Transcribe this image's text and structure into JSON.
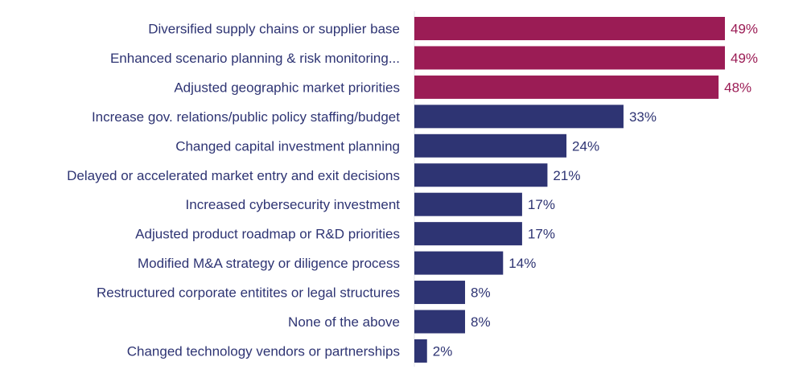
{
  "chart_data": {
    "type": "bar",
    "orientation": "horizontal",
    "categories": [
      "Diversified supply chains or supplier base",
      "Enhanced scenario planning & risk monitoring...",
      "Adjusted geographic market priorities",
      "Increase gov. relations/public policy staffing/budget",
      "Changed capital investment planning",
      "Delayed or accelerated market entry and exit decisions",
      "Increased cybersecurity investment",
      "Adjusted product roadmap or R&D priorities",
      "Modified M&A strategy or diligence process",
      "Restructured corporate entitites or legal structures",
      "None of the above",
      "Changed technology vendors or partnerships"
    ],
    "values": [
      49,
      49,
      48,
      33,
      24,
      21,
      17,
      17,
      14,
      8,
      8,
      2
    ],
    "data_labels": [
      "49%",
      "49%",
      "48%",
      "33%",
      "24%",
      "21%",
      "17%",
      "17%",
      "14%",
      "8%",
      "8%",
      "2%"
    ],
    "highlighted": [
      true,
      true,
      true,
      false,
      false,
      false,
      false,
      false,
      false,
      false,
      false,
      false
    ],
    "xlim": [
      0,
      50
    ],
    "unit": "%",
    "grid": false,
    "colors": {
      "highlight": "#9B1C55",
      "default": "#2E3473",
      "label": "#2E3473",
      "axis": "#E3E3E8"
    }
  }
}
